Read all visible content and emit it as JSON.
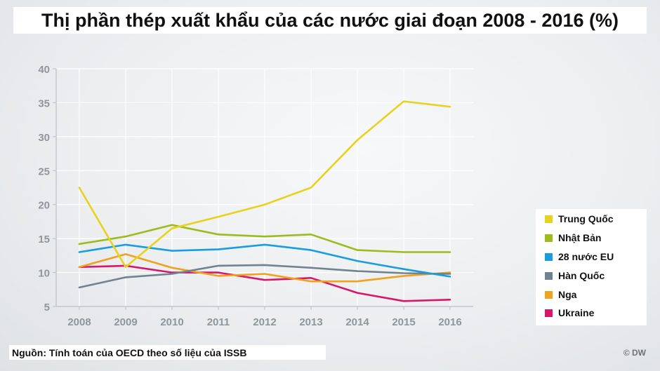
{
  "title": "Thị phần thép xuất khẩu của các nước giai đoạn 2008 - 2016 (%)",
  "source": "Nguồn: Tính toán của OECD theo số liệu của ISSB",
  "credit": "© DW",
  "chart_data": {
    "type": "line",
    "title": "Thị phần thép xuất khẩu của các nước giai đoạn 2008 - 2016 (%)",
    "xlabel": "",
    "ylabel": "",
    "categories": [
      "2008",
      "2009",
      "2010",
      "2011",
      "2012",
      "2013",
      "2014",
      "2015",
      "2016"
    ],
    "ylim": [
      5,
      40
    ],
    "yticks": [
      "5",
      "10",
      "15",
      "20",
      "25",
      "30",
      "35",
      "40"
    ],
    "grid": true,
    "legend_position": "right",
    "series": [
      {
        "name": "Trung Quốc",
        "color": "#e8d21e",
        "values": [
          22.5,
          10.8,
          16.5,
          18.2,
          20.0,
          22.5,
          29.5,
          35.2,
          34.4
        ]
      },
      {
        "name": "Nhật Bản",
        "color": "#9cbc1e",
        "values": [
          14.2,
          15.3,
          17.0,
          15.6,
          15.3,
          15.6,
          13.3,
          13.0,
          13.0
        ]
      },
      {
        "name": "28 nước EU",
        "color": "#1a9de0",
        "values": [
          13.0,
          14.1,
          13.2,
          13.4,
          14.1,
          13.3,
          11.7,
          10.5,
          9.4
        ]
      },
      {
        "name": "Hàn Quốc",
        "color": "#6f8390",
        "values": [
          7.8,
          9.3,
          9.8,
          11.0,
          11.1,
          10.7,
          10.2,
          9.9,
          9.8
        ]
      },
      {
        "name": "Nga",
        "color": "#f0a21e",
        "values": [
          10.8,
          12.7,
          10.7,
          9.5,
          9.8,
          8.7,
          8.7,
          9.5,
          10.0
        ]
      },
      {
        "name": "Ukraine",
        "color": "#d8176a",
        "values": [
          10.8,
          11.0,
          10.0,
          10.0,
          8.9,
          9.2,
          7.0,
          5.8,
          6.0
        ]
      }
    ]
  }
}
